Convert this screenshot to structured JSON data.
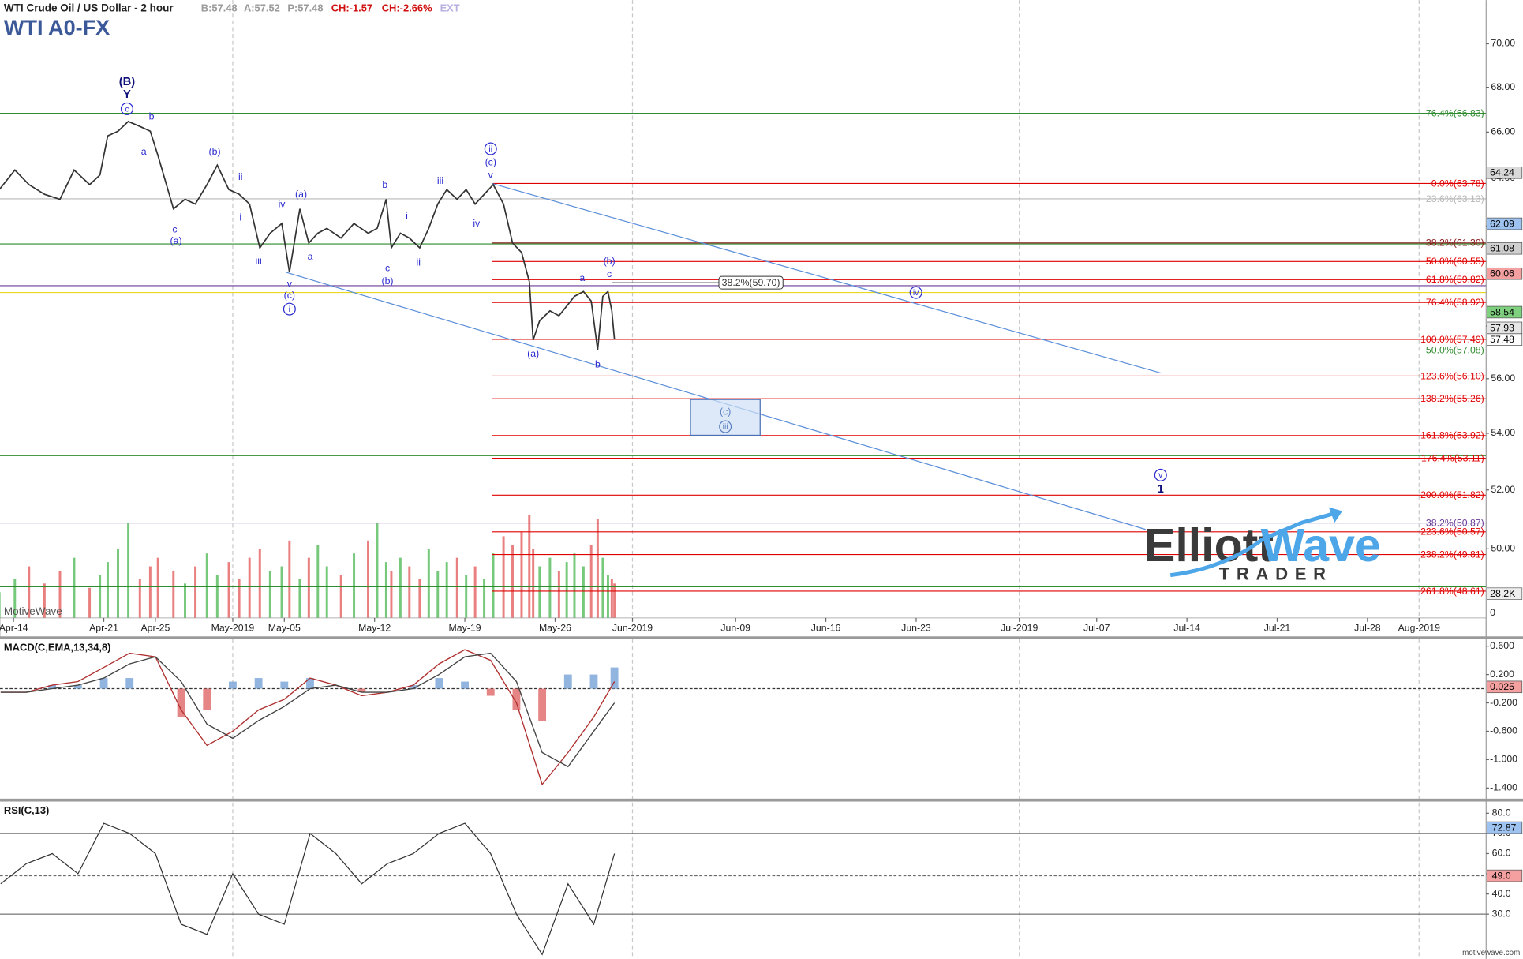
{
  "header": {
    "instrument": "WTI Crude Oil / US Dollar - 2 hour",
    "quotes": [
      "B:57.48",
      "A:57.52",
      "P:57.48",
      "CH:-1.57",
      "CH:-2.66%",
      "EXT"
    ],
    "symbol": "WTI A0-FX"
  },
  "watermark": "MotiveWave",
  "footer": "motivewave.com",
  "logo": {
    "brand1": "Elliott",
    "brand2": "Wave",
    "tag": "TRADER"
  },
  "chart_data": [
    {
      "type": "line",
      "log": true,
      "color": "#333333",
      "x": [
        -1.1,
        0.1,
        1.2,
        2.4,
        3.6,
        4.7,
        5.9,
        6.7,
        7.3,
        8.1,
        8.9,
        9.8,
        10.6,
        11.2,
        12.4,
        13.3,
        14.1,
        15.0,
        15.8,
        16.7,
        17.5,
        18.3,
        19.1,
        19.9,
        20.8,
        21.4,
        22.2,
        22.9,
        23.6,
        24.3,
        25.4,
        26.4,
        27.5,
        28.2,
        28.9,
        29.3,
        30.0,
        30.7,
        31.5,
        32.2,
        32.9,
        33.6,
        34.4,
        35.1,
        35.8,
        36.5,
        37.2,
        38.0,
        38.7,
        39.4,
        40.0,
        40.3,
        40.8,
        41.6,
        42.3,
        42.9,
        43.5,
        44.2,
        44.8,
        45.3,
        45.7,
        46.1,
        46.4,
        46.6
      ],
      "values": [
        63.52,
        64.35,
        63.73,
        63.32,
        63.11,
        64.35,
        63.73,
        64.14,
        65.83,
        66.04,
        66.47,
        66.25,
        66.04,
        64.98,
        62.71,
        63.11,
        62.91,
        63.73,
        64.56,
        63.52,
        63.32,
        62.91,
        61.1,
        61.7,
        62.1,
        60.12,
        62.71,
        61.3,
        61.7,
        61.9,
        61.5,
        62.1,
        61.7,
        61.9,
        63.11,
        61.1,
        61.7,
        61.5,
        61.1,
        61.9,
        62.91,
        63.52,
        63.11,
        63.52,
        62.91,
        63.32,
        63.73,
        62.91,
        61.3,
        60.91,
        59.74,
        57.46,
        58.21,
        58.59,
        58.4,
        58.78,
        59.16,
        59.35,
        58.97,
        57.09,
        59.16,
        59.35,
        58.59,
        57.48
      ],
      "volume": [
        30,
        45,
        60,
        40,
        55,
        70,
        35,
        50,
        65,
        80,
        110,
        45,
        60,
        70,
        55,
        40,
        60,
        75,
        50,
        65,
        45,
        70,
        80,
        55,
        60,
        90,
        45,
        70,
        85,
        60,
        50,
        75,
        90,
        110,
        65,
        55,
        70,
        60,
        45,
        80,
        55,
        65,
        70,
        50,
        60,
        45,
        75,
        95,
        85,
        100,
        120,
        80,
        60,
        70,
        55,
        65,
        75,
        60,
        85,
        115,
        70,
        50,
        45,
        40
      ],
      "volume_ylim": [
        0,
        200
      ],
      "volume_ticks": [
        0
      ],
      "volume_tag": {
        "value": 28.2,
        "label": "28.2K"
      },
      "xlim": [
        -1.05,
        114.2
      ],
      "xticks": [
        {
          "value": 0,
          "label": "Apr-14"
        },
        {
          "value": 7,
          "label": "Apr-21"
        },
        {
          "value": 11,
          "label": "Apr-25"
        },
        {
          "value": 17,
          "label": "May-2019",
          "grid": true
        },
        {
          "value": 21,
          "label": "May-05"
        },
        {
          "value": 28,
          "label": "May-12"
        },
        {
          "value": 35,
          "label": "May-19"
        },
        {
          "value": 42,
          "label": "May-26"
        },
        {
          "value": 48,
          "label": "Jun-2019",
          "grid": true
        },
        {
          "value": 56,
          "label": "Jun-09"
        },
        {
          "value": 63,
          "label": "Jun-16"
        },
        {
          "value": 70,
          "label": "Jun-23"
        },
        {
          "value": 78,
          "label": "Jul-2019",
          "grid": true
        },
        {
          "value": 84,
          "label": "Jul-07"
        },
        {
          "value": 91,
          "label": "Jul-14"
        },
        {
          "value": 98,
          "label": "Jul-21"
        },
        {
          "value": 105,
          "label": "Jul-28"
        },
        {
          "value": 109,
          "label": "Aug-2019",
          "grid": true
        }
      ],
      "ylim": [
        47.75,
        72.07
      ],
      "yticks": [
        {
          "value": 50,
          "label": "50.00"
        },
        {
          "value": 52,
          "label": "52.00"
        },
        {
          "value": 54,
          "label": "54.00"
        },
        {
          "value": 56,
          "label": "56.00"
        },
        {
          "value": 58,
          "label": "58.00"
        },
        {
          "value": 60,
          "label": "60.00"
        },
        {
          "value": 62,
          "label": "62.00"
        },
        {
          "value": 64,
          "label": "64.00"
        },
        {
          "value": 66,
          "label": "66.00"
        },
        {
          "value": 68,
          "label": "68.00"
        },
        {
          "value": 70,
          "label": "70.00"
        }
      ],
      "price_tags": [
        {
          "value": 64.24,
          "color": "#d9d9d9"
        },
        {
          "value": 62.09,
          "color": "#9ec3f0"
        },
        {
          "value": 61.08,
          "color": "#d0d0d0"
        },
        {
          "value": 60.06,
          "color": "#f4a0a0"
        },
        {
          "value": 58.54,
          "color": "#7fd07f"
        },
        {
          "value": 57.93,
          "color": "#e6e6e6"
        },
        {
          "value": 57.48,
          "color": "#ffffff"
        }
      ],
      "levels": [
        {
          "label": "76.4%(66.83)",
          "value": 66.83,
          "color": "#2e8b2e"
        },
        {
          "label": "0.0%(63.78)",
          "value": 63.78,
          "color": "#e00000",
          "x_start": 37.1
        },
        {
          "label": "23.6%(63.13)",
          "value": 63.13,
          "color": "#b8b8b8"
        },
        {
          "label": null,
          "value": 61.26,
          "color": "#2e8b2e"
        },
        {
          "label": "38.2%(61.30)",
          "value": 61.3,
          "color": "#8b1a1a",
          "x_start": 37.1
        },
        {
          "label": "50.0%(60.55)",
          "value": 60.55,
          "color": "#e00000",
          "x_start": 37.1
        },
        {
          "label": "61.8%(59.82)",
          "value": 59.82,
          "color": "#e00000",
          "x_start": 37.1
        },
        {
          "label": null,
          "value": 59.58,
          "color": "#6a3d9a"
        },
        {
          "label": null,
          "value": 59.31,
          "color": "#e6d200"
        },
        {
          "label": "76.4%(58.92)",
          "value": 58.92,
          "color": "#e00000",
          "x_start": 37.1
        },
        {
          "label": "100.0%(57.49)",
          "value": 57.49,
          "color": "#e00000",
          "x_start": 37.1
        },
        {
          "label": "50.0%(57.08)",
          "value": 57.08,
          "color": "#2e8b2e"
        },
        {
          "label": "123.6%(56.10)",
          "value": 56.1,
          "color": "#e00000",
          "x_start": 37.1
        },
        {
          "label": "138.2%(55.26)",
          "value": 55.26,
          "color": "#e00000",
          "x_start": 37.1
        },
        {
          "label": "161.8%(53.92)",
          "value": 53.92,
          "color": "#e00000",
          "x_start": 37.1
        },
        {
          "label": null,
          "value": 53.2,
          "color": "#2e8b2e"
        },
        {
          "label": "176.4%(53.11)",
          "value": 53.11,
          "color": "#e00000",
          "x_start": 37.1
        },
        {
          "label": "200.0%(51.82)",
          "value": 51.82,
          "color": "#e00000",
          "x_start": 37.1
        },
        {
          "label": "38.2%(50.87)",
          "value": 50.87,
          "color": "#6a3d9a"
        },
        {
          "label": "223.6%(50.57)",
          "value": 50.57,
          "color": "#e00000",
          "x_start": 37.1
        },
        {
          "label": "238.2%(49.81)",
          "value": 49.81,
          "color": "#e00000",
          "x_start": 37.1
        },
        {
          "label": null,
          "value": 48.75,
          "color": "#2e8b2e"
        },
        {
          "label": "261.8%(48.61)",
          "value": 48.61,
          "color": "#e00000",
          "x_start": 37.1
        },
        {
          "label": "38.2%(59.70)",
          "value": 59.7,
          "color": "#333333",
          "x_start": 46.4,
          "x_end": 54.7
        }
      ],
      "trendlines": [
        {
          "x": [
            37.1,
            89.0
          ],
          "y": [
            63.78,
            56.21
          ],
          "color": "#5b8fd9"
        },
        {
          "x": [
            21.1,
            87.8
          ],
          "y": [
            60.12,
            50.65
          ],
          "color": "#5b8fd9"
        }
      ],
      "target_box": {
        "x": [
          52.5,
          57.9
        ],
        "y": [
          53.93,
          55.23
        ],
        "color": "#4a6fb5"
      },
      "waves": [
        {
          "text": "(B)",
          "x": 8.8,
          "y": 68.26,
          "color": "#10107a",
          "bold": true
        },
        {
          "text": "Y",
          "x": 8.8,
          "y": 67.68,
          "color": "#10107a",
          "bold": true
        },
        {
          "text": "c",
          "x": 8.8,
          "y": 67.03,
          "color": "#2b2bd0",
          "circled": true
        },
        {
          "text": "b",
          "x": 10.7,
          "y": 66.68,
          "color": "#2b2bd0"
        },
        {
          "text": "a",
          "x": 10.1,
          "y": 65.15,
          "color": "#2b2bd0"
        },
        {
          "text": "(b)",
          "x": 15.6,
          "y": 65.15,
          "color": "#2b2bd0"
        },
        {
          "text": "ii",
          "x": 17.6,
          "y": 64.06,
          "color": "#2b2bd0"
        },
        {
          "text": "i",
          "x": 17.6,
          "y": 62.34,
          "color": "#2b2bd0"
        },
        {
          "text": "c",
          "x": 12.5,
          "y": 61.86,
          "color": "#2b2bd0"
        },
        {
          "text": "(a)",
          "x": 12.6,
          "y": 61.38,
          "color": "#2b2bd0"
        },
        {
          "text": "iv",
          "x": 20.8,
          "y": 62.91,
          "color": "#2b2bd0"
        },
        {
          "text": "(a)",
          "x": 22.3,
          "y": 63.32,
          "color": "#2b2bd0"
        },
        {
          "text": "iii",
          "x": 19.0,
          "y": 60.59,
          "color": "#2b2bd0"
        },
        {
          "text": "v",
          "x": 21.4,
          "y": 59.66,
          "color": "#2b2bd0"
        },
        {
          "text": "(c)",
          "x": 21.4,
          "y": 59.2,
          "color": "#2b2bd0"
        },
        {
          "text": "i",
          "x": 21.4,
          "y": 58.66,
          "color": "#2b2bd0",
          "circled": true
        },
        {
          "text": "a",
          "x": 23.0,
          "y": 60.75,
          "color": "#2b2bd0"
        },
        {
          "text": "b",
          "x": 28.8,
          "y": 63.73,
          "color": "#2b2bd0"
        },
        {
          "text": "i",
          "x": 30.5,
          "y": 62.42,
          "color": "#2b2bd0"
        },
        {
          "text": "c",
          "x": 29.0,
          "y": 60.28,
          "color": "#2b2bd0"
        },
        {
          "text": "(b)",
          "x": 29.0,
          "y": 59.77,
          "color": "#2b2bd0"
        },
        {
          "text": "ii",
          "x": 31.4,
          "y": 60.51,
          "color": "#2b2bd0"
        },
        {
          "text": "iii",
          "x": 33.1,
          "y": 63.89,
          "color": "#2b2bd0"
        },
        {
          "text": "iv",
          "x": 35.9,
          "y": 62.1,
          "color": "#2b2bd0"
        },
        {
          "text": "ii",
          "x": 37.0,
          "y": 65.27,
          "color": "#2b2bd0",
          "circled": true
        },
        {
          "text": "(c)",
          "x": 37.0,
          "y": 64.68,
          "color": "#2b2bd0"
        },
        {
          "text": "v",
          "x": 37.0,
          "y": 64.14,
          "color": "#2b2bd0"
        },
        {
          "text": "(a)",
          "x": 40.3,
          "y": 56.94,
          "color": "#2b2bd0"
        },
        {
          "text": "a",
          "x": 44.1,
          "y": 59.89,
          "color": "#2b2bd0"
        },
        {
          "text": "b",
          "x": 45.3,
          "y": 56.54,
          "color": "#2b2bd0"
        },
        {
          "text": "(b)",
          "x": 46.2,
          "y": 60.55,
          "color": "#2b2bd0"
        },
        {
          "text": "c",
          "x": 46.2,
          "y": 60.04,
          "color": "#2b2bd0"
        },
        {
          "text": "iv",
          "x": 69.98,
          "y": 59.31,
          "color": "#2b2bd0",
          "circled": true
        },
        {
          "text": "(c)",
          "x": 55.2,
          "y": 54.78,
          "color": "#5a7fc0"
        },
        {
          "text": "iii",
          "x": 55.2,
          "y": 54.24,
          "color": "#5a7fc0",
          "circled": true
        },
        {
          "text": "v",
          "x": 88.96,
          "y": 52.52,
          "color": "#2b2bd0",
          "circled": true
        },
        {
          "text": "1",
          "x": 88.96,
          "y": 52.04,
          "color": "#10107a",
          "bold": true
        }
      ]
    },
    {
      "type": "macd",
      "title": "MACD(C,EMA,13,34,8)",
      "x": [
        -1,
        1,
        3,
        5,
        7,
        9,
        11,
        13,
        15,
        17,
        19,
        21,
        23,
        25,
        27,
        29,
        31,
        33,
        35,
        37,
        39,
        41,
        43,
        45,
        46.6
      ],
      "macd": [
        -0.05,
        -0.05,
        0.05,
        0.1,
        0.3,
        0.5,
        0.45,
        -0.3,
        -0.8,
        -0.6,
        -0.3,
        -0.15,
        0.15,
        0.05,
        -0.1,
        -0.05,
        0.05,
        0.35,
        0.55,
        0.4,
        -0.2,
        -1.35,
        -0.9,
        -0.4,
        0.1
      ],
      "signal": [
        -0.05,
        -0.05,
        0,
        0.05,
        0.15,
        0.35,
        0.45,
        0.1,
        -0.5,
        -0.7,
        -0.45,
        -0.25,
        0,
        0.05,
        -0.05,
        -0.05,
        0,
        0.2,
        0.45,
        0.5,
        0.1,
        -0.9,
        -1.1,
        -0.6,
        -0.2
      ],
      "hist": [
        0,
        0,
        0.05,
        0.05,
        0.15,
        0.15,
        0,
        -0.4,
        -0.3,
        0.1,
        0.15,
        0.1,
        0.15,
        0,
        -0.05,
        0,
        0.05,
        0.15,
        0.1,
        -0.1,
        -0.3,
        -0.45,
        0.2,
        0.2,
        0.3
      ],
      "colors": {
        "macd": "#b03030",
        "signal": "#444444",
        "up": "#7ea8d8",
        "down": "#e07070"
      },
      "ylim": [
        -1.55,
        0.71
      ],
      "yticks": [
        {
          "value": 0.6,
          "label": "0.600"
        },
        {
          "value": 0.2,
          "label": "0.200"
        },
        {
          "value": -0.2,
          "label": "-0.200"
        },
        {
          "value": -0.6,
          "label": "-0.600"
        },
        {
          "value": -1,
          "label": "-1.000"
        },
        {
          "value": -1.4,
          "label": "-1.400"
        }
      ],
      "tag": {
        "value": 0.025,
        "color": "#f4a0a0"
      }
    },
    {
      "type": "rsi",
      "title": "RSI(C,13)",
      "color": "#333333",
      "x": [
        -1,
        1,
        3,
        5,
        7,
        9,
        11,
        13,
        15,
        17,
        19,
        21,
        23,
        25,
        27,
        29,
        31,
        33,
        35,
        37,
        39,
        41,
        43,
        45,
        46.6
      ],
      "values": [
        45,
        55,
        60,
        50,
        75,
        70,
        60,
        25,
        20,
        50,
        30,
        25,
        70,
        60,
        45,
        55,
        60,
        70,
        75,
        60,
        30,
        10,
        45,
        25,
        60
      ],
      "ylim": [
        7.8,
        85.3
      ],
      "yticks": [
        {
          "value": 80,
          "label": "80.0"
        },
        {
          "value": 70,
          "label": "70.0"
        },
        {
          "value": 60,
          "label": "60.0"
        },
        {
          "value": 50,
          "label": "50.0"
        },
        {
          "value": 40,
          "label": "40.0"
        },
        {
          "value": 30,
          "label": "30.0"
        }
      ],
      "hlines": [
        {
          "value": 70
        },
        {
          "value": 30
        },
        {
          "value": 49,
          "dashed": true
        }
      ],
      "tags": [
        {
          "value": 72.87,
          "color": "#9ec3f0"
        },
        {
          "value": 49,
          "label": "49.0",
          "color": "#f4a0a0"
        }
      ]
    }
  ]
}
